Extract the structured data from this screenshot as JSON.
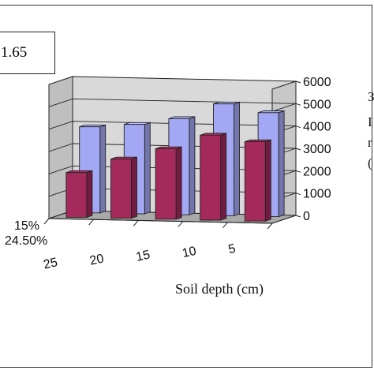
{
  "box_value": "1.65",
  "chart_data": {
    "type": "bar",
    "categories": [
      "25",
      "20",
      "15",
      "10",
      "5"
    ],
    "series": [
      {
        "values": [
          3850,
          4000,
          4300,
          5000,
          4650
        ],
        "color": "#a3a8f5"
      },
      {
        "values": [
          2000,
          2650,
          3150,
          3800,
          3550
        ],
        "color": "#a32a5b"
      }
    ],
    "xlabel": "Soil depth (cm)",
    "y_ticks": [
      "0",
      "1000",
      "2000",
      "3000",
      "4000",
      "5000",
      "6000"
    ],
    "ylim": [
      0,
      6000
    ],
    "depth_labels": [
      "15%",
      "24.50%"
    ],
    "legend_fragments": [
      "3",
      "I",
      "r",
      "("
    ],
    "wall_color": "#d9d9d9",
    "floor_color": "#a9a9a9",
    "grid": true
  }
}
